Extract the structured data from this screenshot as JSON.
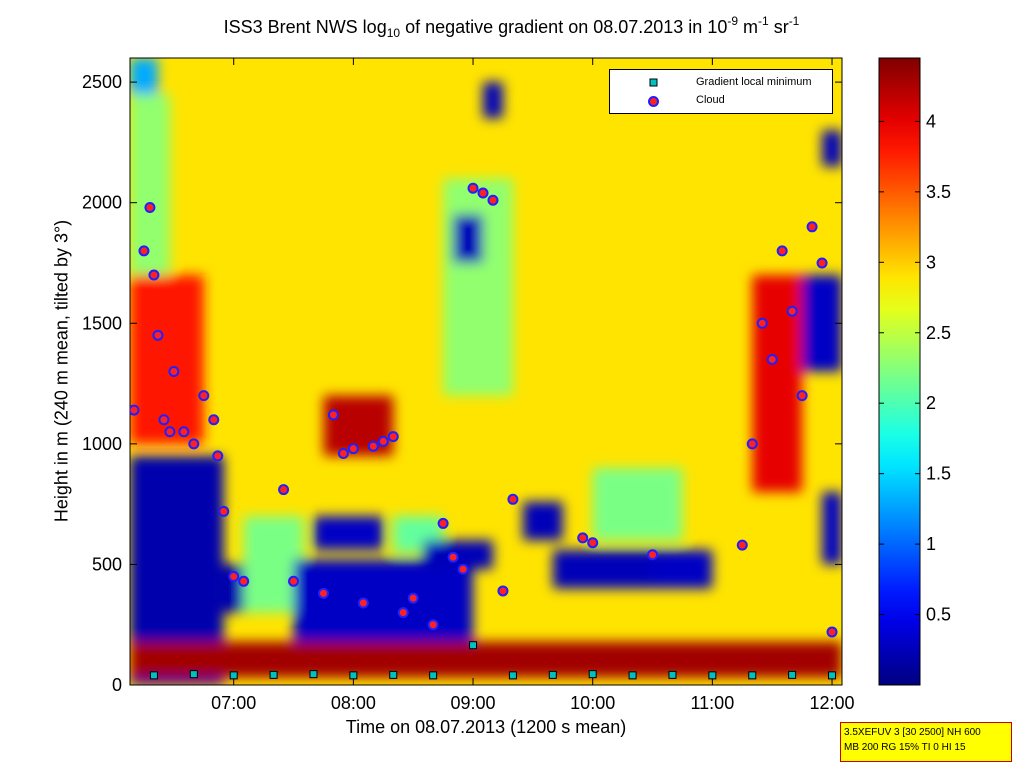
{
  "title": {
    "prefix": "ISS3 Brent NWS log",
    "sub": "10",
    "mid": " of negative gradient on 08.07.2013 in 10",
    "sup1": "-9",
    "mid2": " m",
    "sup2": "-1",
    "mid3": " sr",
    "sup3": "-1"
  },
  "axes": {
    "ylabel": "Height in m (240 m mean, tilted by 3°)",
    "xlabel": "Time on 08.07.2013 (1200 s mean)"
  },
  "legend": {
    "item1": "Gradient local minimum",
    "item2": "Cloud"
  },
  "info": {
    "line1": "3.5XEFUV 3 [30 2500] NH 600",
    "line2": "MB 200 RG 15% TI 0 HI 15"
  },
  "colors": {
    "minimum_marker": "#00c0c0",
    "cloud_marker_fill": "#ff2020",
    "cloud_marker_edge": "#2020ff"
  },
  "chart_data": {
    "type": "heatmap",
    "colormap": "jet",
    "xlim": [
      "06:08",
      "12:05"
    ],
    "ylim": [
      0,
      2600
    ],
    "clim": [
      0,
      4.45
    ],
    "xticks": [
      "07:00",
      "08:00",
      "09:00",
      "10:00",
      "11:00",
      "12:00"
    ],
    "yticks": [
      0,
      500,
      1000,
      1500,
      2000,
      2500
    ],
    "colorbar_ticks": [
      0.5,
      1,
      1.5,
      2,
      2.5,
      3,
      3.5,
      4
    ],
    "legend_position": "top-right",
    "grid": false,
    "background_value": 2.9,
    "patches": [
      {
        "t": [
          "06:08",
          "06:22"
        ],
        "h": [
          2450,
          2600
        ],
        "v": 1.3
      },
      {
        "t": [
          "06:08",
          "06:28"
        ],
        "h": [
          1650,
          2450
        ],
        "v": 2.3
      },
      {
        "t": [
          "06:08",
          "06:45"
        ],
        "h": [
          1000,
          1700
        ],
        "v": 3.8
      },
      {
        "t": [
          "06:08",
          "06:55"
        ],
        "h": [
          0,
          950
        ],
        "v": 0.2
      },
      {
        "t": [
          "06:55",
          "07:20"
        ],
        "h": [
          300,
          500
        ],
        "v": 0.2
      },
      {
        "t": [
          "07:05",
          "07:35"
        ],
        "h": [
          300,
          700
        ],
        "v": 2.2
      },
      {
        "t": [
          "07:30",
          "09:00"
        ],
        "h": [
          180,
          520
        ],
        "v": 0.3
      },
      {
        "t": [
          "07:40",
          "08:15"
        ],
        "h": [
          560,
          700
        ],
        "v": 0.3
      },
      {
        "t": [
          "07:45",
          "08:20"
        ],
        "h": [
          950,
          1200
        ],
        "v": 4.2
      },
      {
        "t": [
          "08:20",
          "08:45"
        ],
        "h": [
          550,
          700
        ],
        "v": 2.1
      },
      {
        "t": [
          "08:35",
          "09:10"
        ],
        "h": [
          480,
          600
        ],
        "v": 0.25
      },
      {
        "t": [
          "08:45",
          "09:20"
        ],
        "h": [
          1200,
          2100
        ],
        "v": 2.3
      },
      {
        "t": [
          "08:50",
          "09:05"
        ],
        "h": [
          1750,
          1950
        ],
        "v": 0.25
      },
      {
        "t": [
          "09:05",
          "09:15"
        ],
        "h": [
          2350,
          2500
        ],
        "v": 0.25
      },
      {
        "t": [
          "09:25",
          "09:45"
        ],
        "h": [
          600,
          760
        ],
        "v": 0.25
      },
      {
        "t": [
          "09:40",
          "10:30"
        ],
        "h": [
          400,
          560
        ],
        "v": 0.25
      },
      {
        "t": [
          "10:30",
          "11:00"
        ],
        "h": [
          400,
          560
        ],
        "v": 0.3
      },
      {
        "t": [
          "10:00",
          "10:45"
        ],
        "h": [
          600,
          900
        ],
        "v": 2.2
      },
      {
        "t": [
          "11:20",
          "11:45"
        ],
        "h": [
          800,
          1700
        ],
        "v": 4.0
      },
      {
        "t": [
          "11:45",
          "12:05"
        ],
        "h": [
          1300,
          1700
        ],
        "v": 0.3
      },
      {
        "t": [
          "11:55",
          "12:05"
        ],
        "h": [
          2150,
          2300
        ],
        "v": 0.25
      },
      {
        "t": [
          "11:55",
          "12:05"
        ],
        "h": [
          500,
          800
        ],
        "v": 0.3
      },
      {
        "t": [
          "06:08",
          "12:05"
        ],
        "h": [
          30,
          180
        ],
        "v": 4.3
      }
    ],
    "gradient_local_minimum": {
      "t": [
        "06:20",
        "06:40",
        "07:00",
        "07:20",
        "07:40",
        "08:00",
        "08:20",
        "08:40",
        "09:00",
        "09:20",
        "09:40",
        "10:00",
        "10:20",
        "10:40",
        "11:00",
        "11:20",
        "11:40",
        "12:00"
      ],
      "h": [
        40,
        45,
        40,
        42,
        45,
        40,
        42,
        40,
        165,
        40,
        42,
        45,
        40,
        42,
        40,
        40,
        42,
        40
      ]
    },
    "cloud": {
      "t": [
        "06:10",
        "06:15",
        "06:18",
        "06:20",
        "06:22",
        "06:25",
        "06:28",
        "06:30",
        "06:35",
        "06:40",
        "06:45",
        "06:50",
        "06:52",
        "06:55",
        "07:00",
        "07:05",
        "07:25",
        "07:30",
        "07:45",
        "07:50",
        "07:55",
        "08:00",
        "08:05",
        "08:10",
        "08:15",
        "08:20",
        "08:25",
        "08:30",
        "08:40",
        "08:45",
        "08:50",
        "08:55",
        "09:00",
        "09:05",
        "09:10",
        "09:15",
        "09:20",
        "09:55",
        "10:00",
        "10:30",
        "11:15",
        "11:20",
        "11:25",
        "11:30",
        "11:35",
        "11:40",
        "11:45",
        "11:50",
        "11:55",
        "12:00"
      ],
      "h": [
        1140,
        1800,
        1980,
        1700,
        1450,
        1100,
        1050,
        1300,
        1050,
        1000,
        1200,
        1100,
        950,
        720,
        450,
        430,
        810,
        430,
        380,
        1120,
        960,
        980,
        340,
        990,
        1010,
        1030,
        300,
        360,
        250,
        670,
        530,
        480,
        2060,
        2040,
        2010,
        390,
        770,
        610,
        590,
        540,
        580,
        1000,
        1500,
        1350,
        1800,
        1550,
        1200,
        1900,
        1750,
        220
      ]
    }
  }
}
